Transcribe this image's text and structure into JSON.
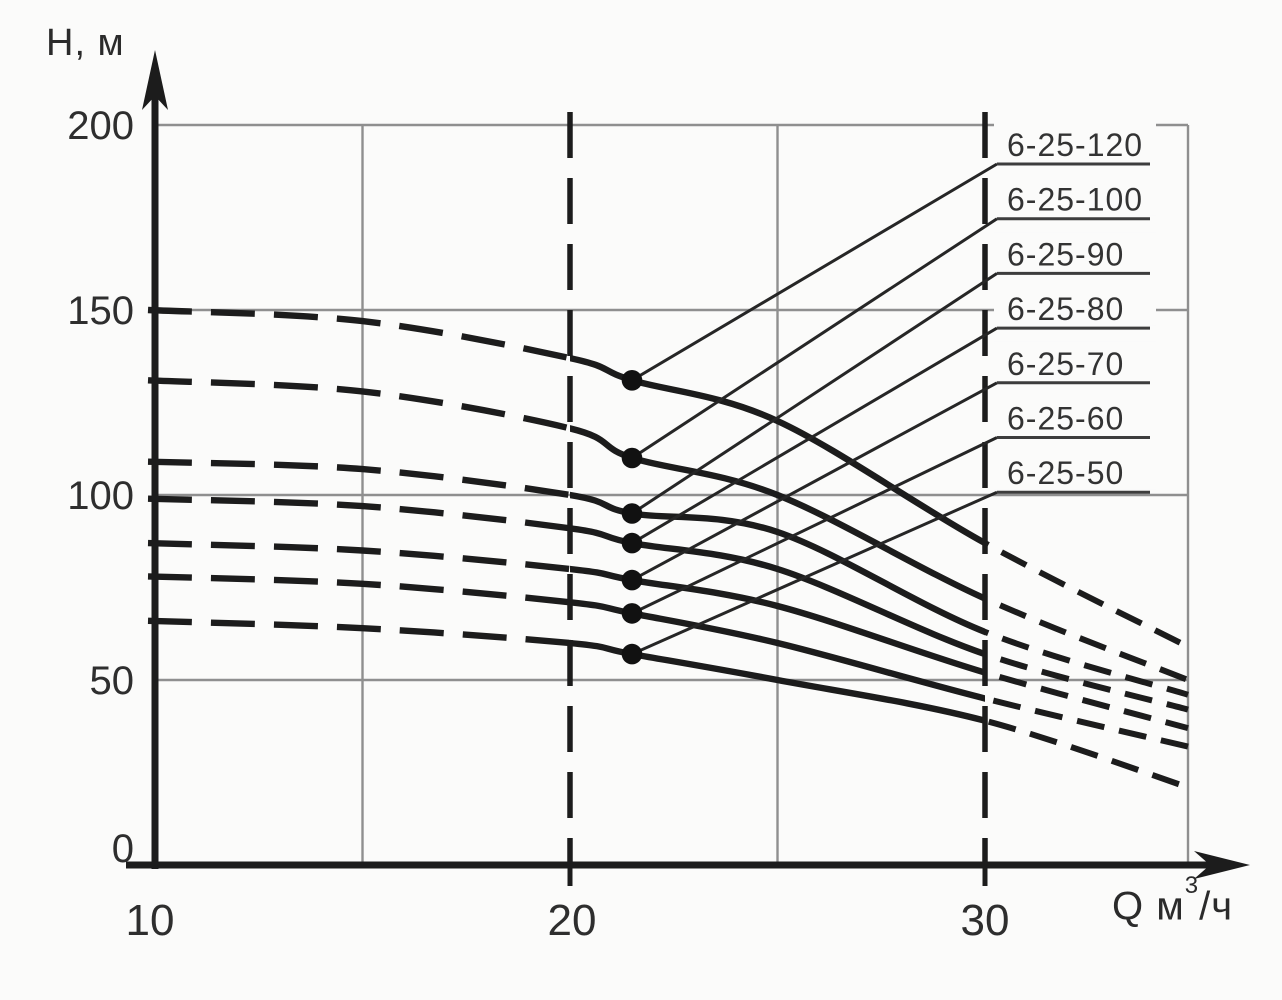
{
  "figure": {
    "background": "#fbfbfa",
    "y_axis_title": "H, м",
    "x_axis_title": {
      "q": "Q",
      "unit_base": " м",
      "unit_sup": "3",
      "unit_denominator": "/ч"
    },
    "y_tick_labels": [
      "200",
      "150",
      "100",
      "50",
      "0"
    ],
    "x_tick_labels": [
      "10",
      "20",
      "30"
    ]
  },
  "chart_data": {
    "type": "line",
    "title": "",
    "xlabel": "Q, м³/ч",
    "ylabel": "H, м",
    "xlim": [
      10,
      35
    ],
    "ylim": [
      0,
      210
    ],
    "x_ticks": [
      10,
      20,
      30
    ],
    "y_ticks": [
      0,
      50,
      100,
      150,
      200
    ],
    "grid": {
      "x_solid": [
        15,
        25
      ],
      "y_solid": [
        50,
        100,
        150,
        200
      ],
      "x_dashed_heavy": [
        20,
        30
      ],
      "right_frame_x": 35
    },
    "legend_position": "right-side stacked labels with leader lines",
    "x": [
      10,
      15,
      20,
      21.5,
      25,
      30,
      35
    ],
    "series": [
      {
        "name": "6-25-120",
        "values": [
          150,
          147,
          137,
          131,
          120,
          87,
          59
        ]
      },
      {
        "name": "6-25-100",
        "values": [
          131,
          128,
          118,
          110,
          100,
          72,
          50
        ]
      },
      {
        "name": "6-25-90",
        "values": [
          109,
          107,
          100,
          95,
          90,
          63,
          46
        ]
      },
      {
        "name": "6-25-80",
        "values": [
          99,
          97,
          91,
          87,
          80,
          57,
          42
        ]
      },
      {
        "name": "6-25-70",
        "values": [
          87,
          85,
          80,
          77,
          70,
          52,
          37
        ]
      },
      {
        "name": "6-25-60",
        "values": [
          78,
          76,
          71,
          68,
          60,
          45,
          32
        ]
      },
      {
        "name": "6-25-50",
        "values": [
          66,
          64,
          60,
          57,
          50,
          39,
          21
        ]
      }
    ],
    "markers": {
      "x": 21.5,
      "values": [
        131,
        110,
        95,
        87,
        77,
        68,
        57
      ]
    },
    "line_style": {
      "dashed_outside_q": [
        20,
        30
      ],
      "solid_between_q": [
        20,
        30
      ]
    },
    "colors": {
      "ink": "#1c1c1c",
      "grid": "#8f8f8f",
      "label_text": "#333333"
    }
  }
}
